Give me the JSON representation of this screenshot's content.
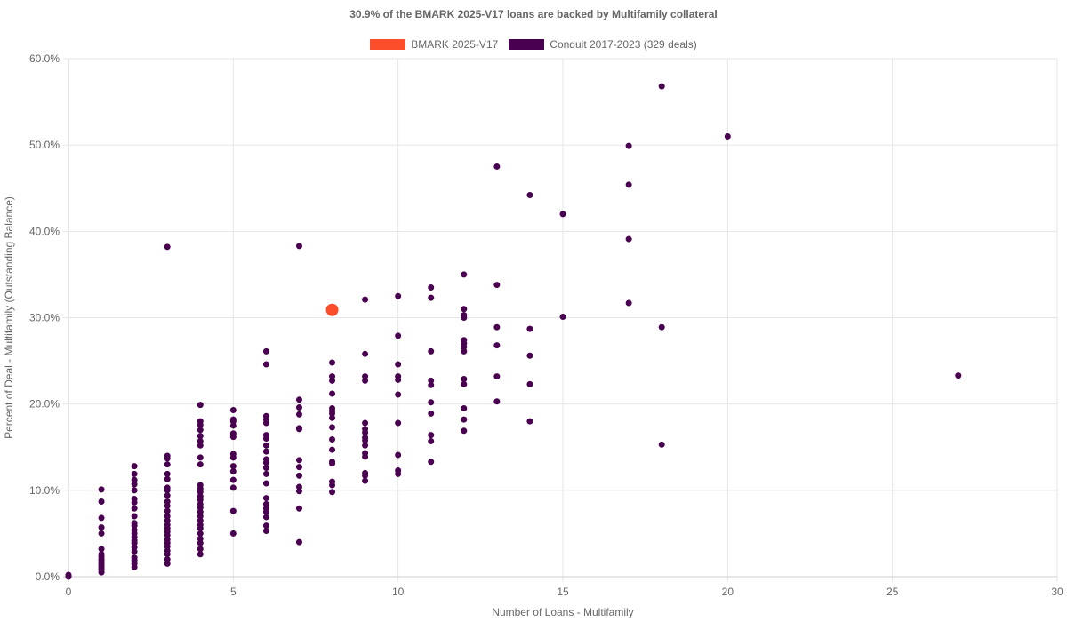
{
  "chart_data": {
    "type": "scatter",
    "title": "30.9% of the BMARK 2025-V17 loans are backed by Multifamily collateral",
    "xlabel": "Number of Loans - Multifamily",
    "ylabel": "Percent of Deal - Multifamily (Outstanding Balance)",
    "xlim": [
      0,
      30
    ],
    "ylim": [
      0,
      60
    ],
    "x_ticks": [
      "0",
      "5",
      "10",
      "15",
      "20",
      "25",
      "30"
    ],
    "y_ticks": [
      "0.0%",
      "10.0%",
      "20.0%",
      "30.0%",
      "40.0%",
      "50.0%",
      "60.0%"
    ],
    "grid": true,
    "legend_position": "top",
    "series": [
      {
        "name": "BMARK 2025-V17",
        "color": "#fc4e2a",
        "points": [
          [
            8,
            30.9
          ]
        ]
      },
      {
        "name": "Conduit 2017-2023 (329 deals)",
        "color": "#4a0050",
        "points": [
          [
            0,
            0
          ],
          [
            0,
            0.1
          ],
          [
            0,
            0.2
          ],
          [
            1,
            0.5
          ],
          [
            1,
            0.8
          ],
          [
            1,
            1.0
          ],
          [
            1,
            1.2
          ],
          [
            1,
            1.4
          ],
          [
            1,
            1.6
          ],
          [
            1,
            1.8
          ],
          [
            1,
            2.0
          ],
          [
            1,
            2.3
          ],
          [
            1,
            2.6
          ],
          [
            1,
            3.2
          ],
          [
            1,
            5.0
          ],
          [
            1,
            5.7
          ],
          [
            1,
            6.8
          ],
          [
            1,
            8.7
          ],
          [
            1,
            10.1
          ],
          [
            2,
            1.1
          ],
          [
            2,
            1.5
          ],
          [
            2,
            1.9
          ],
          [
            2,
            2.2
          ],
          [
            2,
            2.9
          ],
          [
            2,
            3.4
          ],
          [
            2,
            3.9
          ],
          [
            2,
            4.2
          ],
          [
            2,
            4.6
          ],
          [
            2,
            5.0
          ],
          [
            2,
            5.4
          ],
          [
            2,
            5.9
          ],
          [
            2,
            6.2
          ],
          [
            2,
            7.0
          ],
          [
            2,
            7.9
          ],
          [
            2,
            8.6
          ],
          [
            2,
            9.0
          ],
          [
            2,
            10.0
          ],
          [
            2,
            10.7
          ],
          [
            2,
            11.2
          ],
          [
            2,
            11.9
          ],
          [
            2,
            12.8
          ],
          [
            3,
            1.5
          ],
          [
            3,
            2.0
          ],
          [
            3,
            2.6
          ],
          [
            3,
            3.0
          ],
          [
            3,
            3.5
          ],
          [
            3,
            3.9
          ],
          [
            3,
            4.3
          ],
          [
            3,
            4.8
          ],
          [
            3,
            5.2
          ],
          [
            3,
            5.6
          ],
          [
            3,
            6.0
          ],
          [
            3,
            6.5
          ],
          [
            3,
            7.0
          ],
          [
            3,
            7.6
          ],
          [
            3,
            8.2
          ],
          [
            3,
            8.7
          ],
          [
            3,
            9.4
          ],
          [
            3,
            10.0
          ],
          [
            3,
            10.3
          ],
          [
            3,
            11.3
          ],
          [
            3,
            11.9
          ],
          [
            3,
            13.0
          ],
          [
            3,
            13.7
          ],
          [
            3,
            14.0
          ],
          [
            3,
            38.2
          ],
          [
            4,
            2.6
          ],
          [
            4,
            3.2
          ],
          [
            4,
            3.9
          ],
          [
            4,
            4.4
          ],
          [
            4,
            5.0
          ],
          [
            4,
            5.6
          ],
          [
            4,
            6.0
          ],
          [
            4,
            6.5
          ],
          [
            4,
            7.0
          ],
          [
            4,
            7.5
          ],
          [
            4,
            8.0
          ],
          [
            4,
            8.4
          ],
          [
            4,
            8.9
          ],
          [
            4,
            9.3
          ],
          [
            4,
            9.8
          ],
          [
            4,
            10.2
          ],
          [
            4,
            10.6
          ],
          [
            4,
            13.0
          ],
          [
            4,
            13.8
          ],
          [
            4,
            15.2
          ],
          [
            4,
            15.7
          ],
          [
            4,
            16.3
          ],
          [
            4,
            17.0
          ],
          [
            4,
            17.6
          ],
          [
            4,
            18.0
          ],
          [
            4,
            19.9
          ],
          [
            5,
            5.0
          ],
          [
            5,
            7.6
          ],
          [
            5,
            10.3
          ],
          [
            5,
            11.2
          ],
          [
            5,
            12.2
          ],
          [
            5,
            12.8
          ],
          [
            5,
            13.8
          ],
          [
            5,
            14.2
          ],
          [
            5,
            16.2
          ],
          [
            5,
            16.6
          ],
          [
            5,
            17.5
          ],
          [
            5,
            18.0
          ],
          [
            5,
            18.2
          ],
          [
            5,
            19.3
          ],
          [
            6,
            5.3
          ],
          [
            6,
            5.9
          ],
          [
            6,
            6.9
          ],
          [
            6,
            7.5
          ],
          [
            6,
            7.9
          ],
          [
            6,
            8.4
          ],
          [
            6,
            9.1
          ],
          [
            6,
            10.8
          ],
          [
            6,
            11.9
          ],
          [
            6,
            12.6
          ],
          [
            6,
            13.2
          ],
          [
            6,
            13.6
          ],
          [
            6,
            14.5
          ],
          [
            6,
            15.2
          ],
          [
            6,
            16.0
          ],
          [
            6,
            16.4
          ],
          [
            6,
            17.8
          ],
          [
            6,
            18.2
          ],
          [
            6,
            18.6
          ],
          [
            6,
            24.6
          ],
          [
            6,
            26.1
          ],
          [
            7,
            4.0
          ],
          [
            7,
            7.9
          ],
          [
            7,
            9.9
          ],
          [
            7,
            10.4
          ],
          [
            7,
            11.7
          ],
          [
            7,
            12.7
          ],
          [
            7,
            13.5
          ],
          [
            7,
            17.1
          ],
          [
            7,
            17.2
          ],
          [
            7,
            18.8
          ],
          [
            7,
            19.6
          ],
          [
            7,
            20.5
          ],
          [
            7,
            38.3
          ],
          [
            8,
            9.8
          ],
          [
            8,
            10.6
          ],
          [
            8,
            11.0
          ],
          [
            8,
            13.1
          ],
          [
            8,
            13.3
          ],
          [
            8,
            14.7
          ],
          [
            8,
            15.9
          ],
          [
            8,
            17.3
          ],
          [
            8,
            18.4
          ],
          [
            8,
            18.9
          ],
          [
            8,
            19.2
          ],
          [
            8,
            19.5
          ],
          [
            8,
            21.2
          ],
          [
            8,
            22.7
          ],
          [
            8,
            23.2
          ],
          [
            8,
            24.8
          ],
          [
            9,
            11.1
          ],
          [
            9,
            11.7
          ],
          [
            9,
            12.0
          ],
          [
            9,
            13.9
          ],
          [
            9,
            14.3
          ],
          [
            9,
            15.2
          ],
          [
            9,
            15.8
          ],
          [
            9,
            16.1
          ],
          [
            9,
            16.7
          ],
          [
            9,
            17.1
          ],
          [
            9,
            17.8
          ],
          [
            9,
            22.7
          ],
          [
            9,
            23.2
          ],
          [
            9,
            25.8
          ],
          [
            9,
            32.1
          ],
          [
            10,
            11.9
          ],
          [
            10,
            12.3
          ],
          [
            10,
            14.1
          ],
          [
            10,
            17.8
          ],
          [
            10,
            21.1
          ],
          [
            10,
            22.8
          ],
          [
            10,
            23.2
          ],
          [
            10,
            24.6
          ],
          [
            10,
            27.9
          ],
          [
            10,
            32.5
          ],
          [
            11,
            13.3
          ],
          [
            11,
            15.7
          ],
          [
            11,
            16.4
          ],
          [
            11,
            18.9
          ],
          [
            11,
            20.2
          ],
          [
            11,
            22.2
          ],
          [
            11,
            22.7
          ],
          [
            11,
            26.1
          ],
          [
            11,
            32.3
          ],
          [
            11,
            33.5
          ],
          [
            12,
            16.9
          ],
          [
            12,
            18.2
          ],
          [
            12,
            19.5
          ],
          [
            12,
            22.3
          ],
          [
            12,
            22.9
          ],
          [
            12,
            26.1
          ],
          [
            12,
            26.6
          ],
          [
            12,
            27.0
          ],
          [
            12,
            27.4
          ],
          [
            12,
            30.0
          ],
          [
            12,
            30.3
          ],
          [
            12,
            31.0
          ],
          [
            12,
            35.0
          ],
          [
            13,
            20.3
          ],
          [
            13,
            23.2
          ],
          [
            13,
            26.8
          ],
          [
            13,
            28.9
          ],
          [
            13,
            33.8
          ],
          [
            13,
            47.5
          ],
          [
            14,
            18.0
          ],
          [
            14,
            22.3
          ],
          [
            14,
            25.6
          ],
          [
            14,
            28.7
          ],
          [
            14,
            44.2
          ],
          [
            15,
            30.1
          ],
          [
            15,
            42.0
          ],
          [
            17,
            31.7
          ],
          [
            17,
            39.1
          ],
          [
            17,
            45.4
          ],
          [
            17,
            49.9
          ],
          [
            18,
            15.3
          ],
          [
            18,
            28.9
          ],
          [
            18,
            56.8
          ],
          [
            20,
            51.0
          ],
          [
            27,
            23.3
          ]
        ]
      }
    ]
  }
}
